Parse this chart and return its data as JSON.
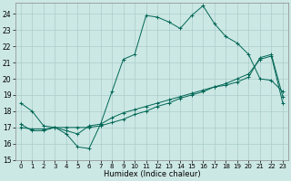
{
  "xlabel": "Humidex (Indice chaleur)",
  "xlim": [
    -0.5,
    23.5
  ],
  "ylim": [
    15,
    24.7
  ],
  "yticks": [
    15,
    16,
    17,
    18,
    19,
    20,
    21,
    22,
    23,
    24
  ],
  "xticks": [
    0,
    1,
    2,
    3,
    4,
    5,
    6,
    7,
    8,
    9,
    10,
    11,
    12,
    13,
    14,
    15,
    16,
    17,
    18,
    19,
    20,
    21,
    22,
    23
  ],
  "bg_color": "#cce8e4",
  "grid_color": "#aacccc",
  "line_color": "#006655",
  "line1_y": [
    18.5,
    18.0,
    17.1,
    17.0,
    16.6,
    15.8,
    15.7,
    17.2,
    19.2,
    21.2,
    21.5,
    23.9,
    23.8,
    23.5,
    23.1,
    23.9,
    24.5,
    23.4,
    22.6,
    22.2,
    21.5,
    20.0,
    19.9,
    19.2
  ],
  "line2_y": [
    17.2,
    16.8,
    16.8,
    17.0,
    16.8,
    16.6,
    17.1,
    17.2,
    17.6,
    17.9,
    18.1,
    18.3,
    18.5,
    18.7,
    18.9,
    19.1,
    19.3,
    19.5,
    19.6,
    19.8,
    20.1,
    21.3,
    21.5,
    18.9
  ],
  "line3_y": [
    17.0,
    16.9,
    16.9,
    17.0,
    17.0,
    17.0,
    17.0,
    17.1,
    17.3,
    17.5,
    17.8,
    18.0,
    18.3,
    18.5,
    18.8,
    19.0,
    19.2,
    19.5,
    19.7,
    20.0,
    20.3,
    21.2,
    21.4,
    18.5
  ]
}
